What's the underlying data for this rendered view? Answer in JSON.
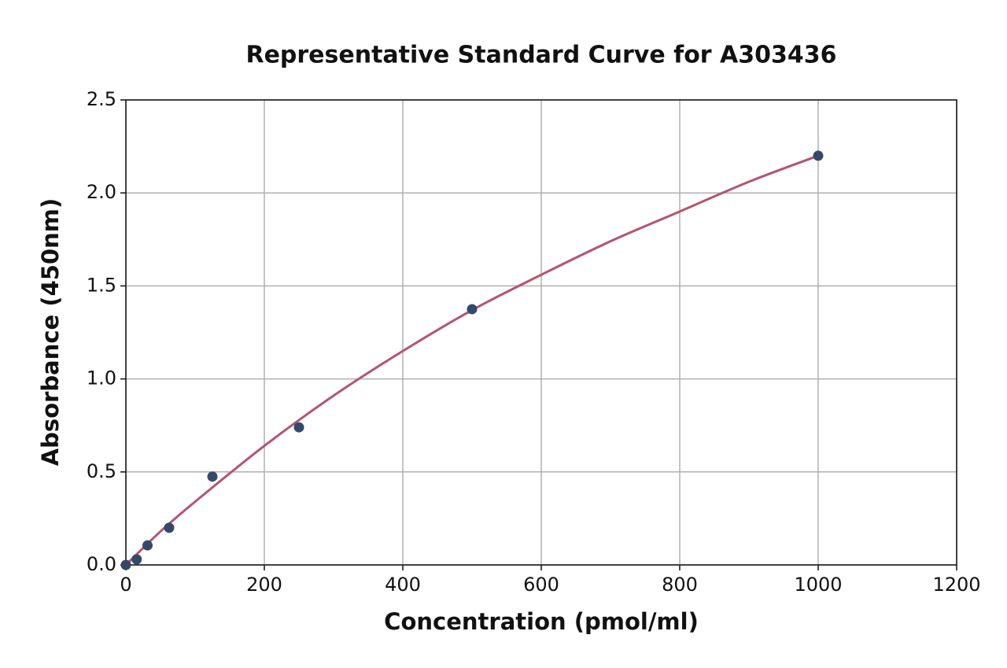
{
  "chart_data": {
    "type": "scatter",
    "title": "Representative Standard Curve for A303436",
    "x_label": "Concentration (pmol/ml)",
    "y_label": "Absorbance (450nm)",
    "xlim": [
      0,
      1200
    ],
    "xticks": [
      0,
      200,
      400,
      600,
      800,
      1000,
      1200
    ],
    "ylim": [
      0,
      2.5
    ],
    "yticks": [
      {
        "value": 0,
        "label": "0.0"
      },
      0.5,
      {
        "value": 1,
        "label": "1.0"
      },
      1.5,
      {
        "value": 2,
        "label": "2.0"
      },
      2.5
    ],
    "grid": true,
    "series": [
      {
        "type": "scatter",
        "color": "#34496a",
        "x": [
          0,
          15.625,
          31.25,
          62.5,
          125,
          250,
          500,
          1000
        ],
        "values": [
          0,
          0.03,
          0.105,
          0.2,
          0.475,
          0.74,
          1.375,
          2.2
        ]
      },
      {
        "type": "line",
        "color": "#b5546f",
        "x": [
          0,
          50,
          100,
          200,
          300,
          400,
          500,
          600,
          700,
          800,
          900,
          1000
        ],
        "values": [
          0,
          0.18,
          0.34,
          0.64,
          0.91,
          1.15,
          1.37,
          1.56,
          1.74,
          1.9,
          2.06,
          2.2
        ]
      }
    ]
  }
}
